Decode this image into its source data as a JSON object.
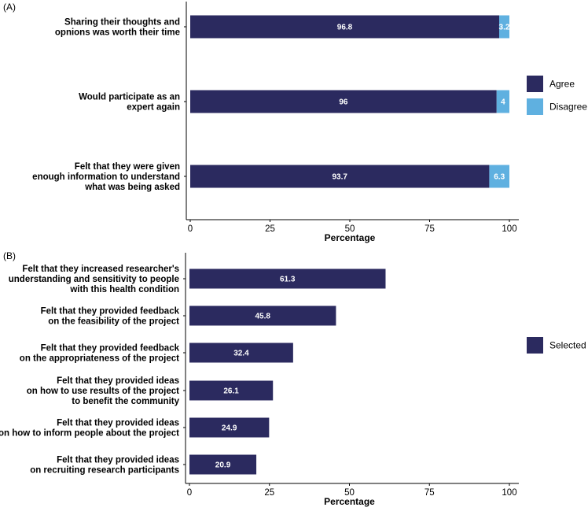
{
  "colors": {
    "agree": "#2b2a5f",
    "disagree": "#5fb0e0",
    "selected": "#2b2a5f"
  },
  "chart_data": [
    {
      "panel": "(A)",
      "type": "bar",
      "orientation": "horizontal",
      "stacked": true,
      "categories": [
        "Sharing their thoughts and opnions was worth their time",
        "Would participate as an expert again",
        "Felt that they were given enough information to understand what was being asked"
      ],
      "series": [
        {
          "name": "Agree",
          "values": [
            96.8,
            96,
            93.7
          ]
        },
        {
          "name": "Disagree",
          "values": [
            3.2,
            4,
            6.3
          ]
        }
      ],
      "value_labels": {
        "Agree": [
          "96.8",
          "96",
          "93.7"
        ],
        "Disagree": [
          "3.2",
          "4",
          "6.3"
        ]
      },
      "xlabel": "Percentage",
      "ylabel": "",
      "xlim": [
        0,
        100
      ],
      "xticks": [
        "0",
        "25",
        "50",
        "75",
        "100"
      ],
      "legend": [
        "Agree",
        "Disagree"
      ],
      "legend_position": "right",
      "grid": false
    },
    {
      "panel": "(B)",
      "type": "bar",
      "orientation": "horizontal",
      "stacked": false,
      "categories": [
        "Felt that they increased researcher's understanding and sensitivity to people with this health condition",
        "Felt that they provided feedback on the feasibility of the project",
        "Felt that they provided feedback on the appropriateness of the project",
        "Felt that they provided ideas on how to use results of the project to benefit the community",
        "Felt that they provided ideas on how to inform people about the project",
        "Felt that they provided ideas on recruiting research participants"
      ],
      "series": [
        {
          "name": "Selected",
          "values": [
            61.3,
            45.8,
            32.4,
            26.1,
            24.9,
            20.9
          ]
        }
      ],
      "value_labels": {
        "Selected": [
          "61.3",
          "45.8",
          "32.4",
          "26.1",
          "24.9",
          "20.9"
        ]
      },
      "xlabel": "Percentage",
      "ylabel": "",
      "xlim": [
        0,
        100
      ],
      "xticks": [
        "0",
        "25",
        "50",
        "75",
        "100"
      ],
      "legend": [
        "Selected"
      ],
      "legend_position": "right",
      "grid": false
    }
  ]
}
